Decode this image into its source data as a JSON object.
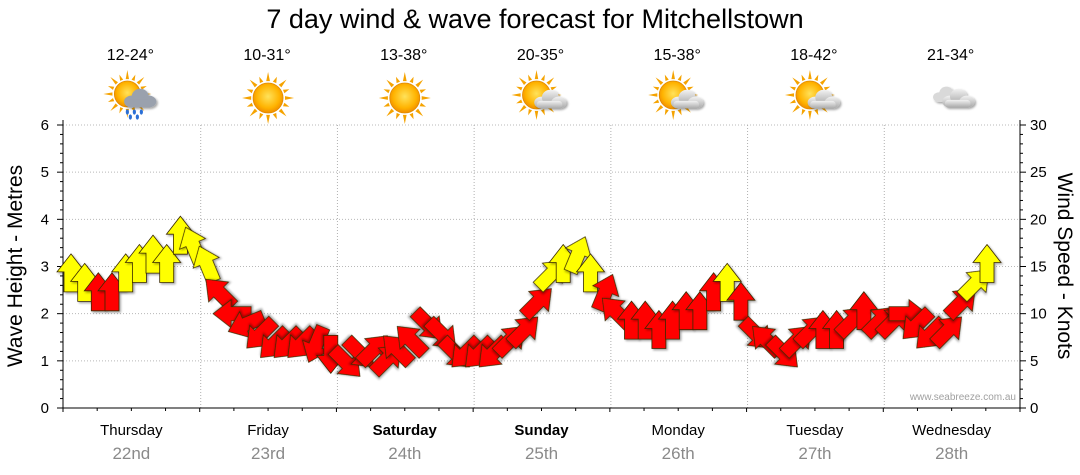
{
  "chart_data": {
    "type": "line",
    "title": "7 day wind & wave forecast for Mitchellstown",
    "ylabel": "Wave Height - Metres",
    "y2label": "Wind Speed - Knots",
    "ylim": [
      0,
      6
    ],
    "y2lim": [
      0,
      30
    ],
    "yticks": [
      "0",
      "1",
      "2",
      "3",
      "4",
      "5",
      "6"
    ],
    "y2ticks": [
      "0",
      "5",
      "10",
      "15",
      "20",
      "25",
      "30"
    ],
    "grid": true,
    "days": [
      {
        "name": "Thursday",
        "date": "22nd",
        "temp": "12-24°",
        "icon": "sun-cloud-rain-icon",
        "bold": false
      },
      {
        "name": "Friday",
        "date": "23rd",
        "temp": "10-31°",
        "icon": "sun-icon",
        "bold": false
      },
      {
        "name": "Saturday",
        "date": "24th",
        "temp": "13-38°",
        "icon": "sun-icon",
        "bold": true
      },
      {
        "name": "Sunday",
        "date": "25th",
        "temp": "20-35°",
        "icon": "sun-cloud-icon",
        "bold": true
      },
      {
        "name": "Monday",
        "date": "26th",
        "temp": "15-38°",
        "icon": "sun-cloud-icon",
        "bold": false
      },
      {
        "name": "Tuesday",
        "date": "27th",
        "temp": "18-42°",
        "icon": "sun-cloud-icon",
        "bold": false
      },
      {
        "name": "Wednesday",
        "date": "28th",
        "temp": "21-34°",
        "icon": "cloud-icon",
        "bold": false
      }
    ],
    "wind_series": {
      "name": "Wind",
      "unit": "knots",
      "light_color": "#ffff00",
      "strong_color": "#ff0000",
      "x_days": [
        0.0,
        0.1,
        0.2,
        0.3,
        0.4,
        0.5,
        0.6,
        0.7,
        0.8,
        0.9,
        1.0,
        1.1,
        1.2,
        1.3,
        1.4,
        1.5,
        1.6,
        1.7,
        1.8,
        1.9,
        2.0,
        2.1,
        2.2,
        2.3,
        2.4,
        2.5,
        2.6,
        2.7,
        2.8,
        2.9,
        3.0,
        3.1,
        3.2,
        3.3,
        3.4,
        3.5,
        3.6,
        3.7,
        3.8,
        3.9,
        4.0,
        4.1,
        4.2,
        4.3,
        4.4,
        4.5,
        4.6,
        4.7,
        4.8,
        4.9,
        5.0,
        5.1,
        5.2,
        5.3,
        5.4,
        5.5,
        5.6,
        5.7,
        5.8,
        5.9,
        6.0,
        6.1,
        6.2,
        6.3,
        6.4,
        6.5,
        6.6,
        6.7
      ],
      "speed_knots": [
        14,
        13,
        12,
        12,
        14,
        15,
        16,
        15,
        18,
        17,
        15,
        12,
        10,
        9,
        8,
        7,
        7,
        7,
        7,
        6,
        5,
        6,
        6,
        5,
        6,
        7,
        9,
        8,
        6,
        6,
        6,
        6,
        7,
        8,
        11,
        14,
        15,
        16,
        14,
        12,
        10,
        9,
        9,
        8,
        9,
        10,
        10,
        12,
        13,
        11,
        8,
        7,
        6,
        7,
        8,
        8,
        8,
        9,
        10,
        9,
        9,
        10,
        9,
        8,
        8,
        11,
        13,
        15
      ],
      "direction": [
        "N",
        "N",
        "N",
        "N",
        "N",
        "N",
        "N",
        "N",
        "N",
        "NNW",
        "NNW",
        "NW",
        "W",
        "WSW",
        "SW",
        "SW",
        "SW",
        "SW",
        "SSW",
        "S",
        "SE",
        "SE",
        "NE",
        "NE",
        "NW",
        "NW",
        "SE",
        "SE",
        "SE",
        "SW",
        "SW",
        "SW",
        "NE",
        "NE",
        "NE",
        "NE",
        "N",
        "NNE",
        "N",
        "NNE",
        "NW",
        "N",
        "N",
        "N",
        "N",
        "N",
        "N",
        "N",
        "N",
        "N",
        "SE",
        "NW",
        "SE",
        "NE",
        "NE",
        "N",
        "N",
        "NE",
        "N",
        "NE",
        "NE",
        "E",
        "SW",
        "SW",
        "NE",
        "NE",
        "NE",
        "N"
      ]
    }
  },
  "credit": "www.seabreeze.com.au"
}
